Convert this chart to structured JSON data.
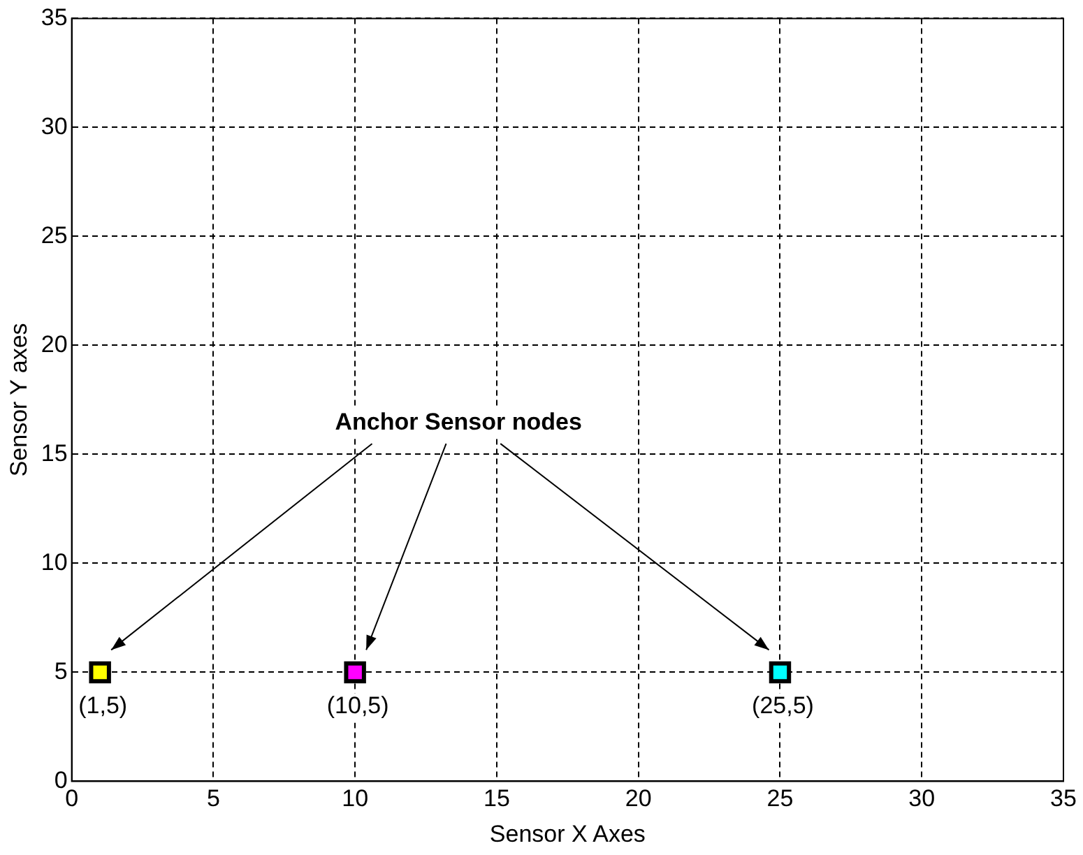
{
  "chart_data": {
    "type": "scatter",
    "xlabel": "Sensor X Axes",
    "ylabel": "Sensor Y axes",
    "x": [
      1,
      10,
      25
    ],
    "values": [
      5,
      5,
      5
    ],
    "colors": [
      "#ffff00",
      "#ff00ff",
      "#00ffff"
    ],
    "marker": "square",
    "grid": true,
    "xlim": [
      0,
      35
    ],
    "xticks": [
      0,
      5,
      10,
      15,
      20,
      25,
      30,
      35
    ],
    "ylim": [
      0,
      35
    ],
    "yticks": [
      0,
      5,
      10,
      15,
      20,
      25,
      30,
      35
    ],
    "annotations": [
      "Anchor Sensor nodes",
      {
        "text": "(1,5)",
        "x": 1,
        "y": 5
      },
      {
        "text": "(10,5)",
        "x": 10,
        "y": 5
      },
      {
        "text": "(25,5)",
        "x": 25,
        "y": 5
      }
    ]
  }
}
